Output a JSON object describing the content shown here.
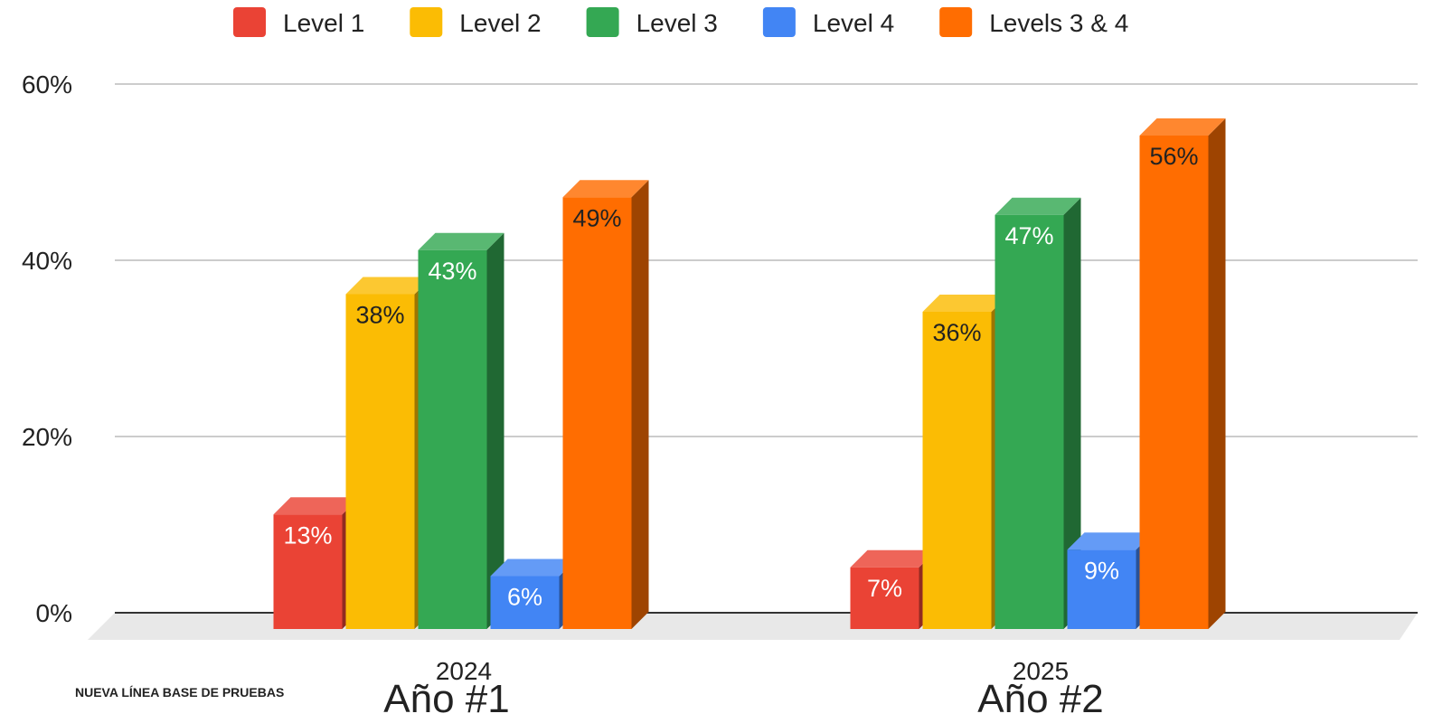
{
  "chart_data": {
    "type": "bar",
    "style": "3d-clustered-column",
    "title": "",
    "xlabel": "",
    "ylabel": "",
    "categories": [
      "2024",
      "2025"
    ],
    "series": [
      {
        "name": "Level 1",
        "color": "#ea4335",
        "values": [
          13,
          7
        ],
        "labels": [
          "13%",
          "7%"
        ],
        "label_color": "#ffffff"
      },
      {
        "name": "Level 2",
        "color": "#fbbc04",
        "values": [
          38,
          36
        ],
        "labels": [
          "38%",
          "36%"
        ],
        "label_color": "#222222"
      },
      {
        "name": "Level 3",
        "color": "#34a853",
        "values": [
          43,
          47
        ],
        "labels": [
          "43%",
          "47%"
        ],
        "label_color": "#ffffff"
      },
      {
        "name": "Level 4",
        "color": "#4285f4",
        "values": [
          6,
          9
        ],
        "labels": [
          "6%",
          "9%"
        ],
        "label_color": "#ffffff"
      },
      {
        "name": "Levels 3 & 4",
        "color": "#ff6d01",
        "values": [
          49,
          56
        ],
        "labels": [
          "49%",
          "56%"
        ],
        "label_color": "#222222"
      }
    ],
    "y_ticks": [
      "0%",
      "20%",
      "40%",
      "60%"
    ],
    "y_tick_values": [
      0,
      20,
      40,
      60
    ],
    "ylim": [
      0,
      60
    ],
    "grid": true,
    "legend_position": "top"
  },
  "annotations": {
    "footer_note": "NUEVA LÍNEA BASE DE PRUEBAS",
    "year_captions": [
      "Año #1",
      "Año #2"
    ]
  }
}
